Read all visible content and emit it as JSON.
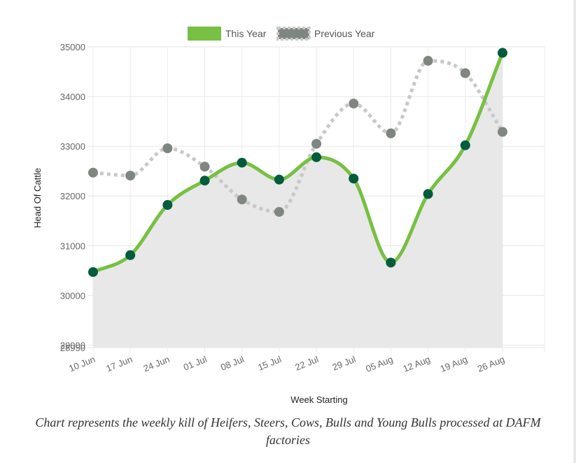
{
  "chart_data": {
    "type": "line",
    "xlabel": "Week Starting",
    "ylabel": "Head Of Cattle",
    "categories": [
      "10 Jun",
      "17 Jun",
      "24 Jun",
      "01 Jul",
      "08 Jul",
      "15 Jul",
      "22 Jul",
      "29 Jul",
      "05 Aug",
      "12 Aug",
      "19 Aug",
      "26 Aug"
    ],
    "ylim": [
      28950,
      35000
    ],
    "yticks": [
      29000,
      30000,
      31000,
      32000,
      33000,
      34000,
      35000
    ],
    "ytick_labels": [
      "29000",
      "30000",
      "31000",
      "32000",
      "33000",
      "34000",
      "35000"
    ],
    "bottom_tick_label": "28950",
    "grid": true,
    "legend_position": "top",
    "series": [
      {
        "name": "This Year",
        "style": "solid",
        "line_color": "#77c043",
        "point_color": "#005c3c",
        "fill_color": "#e8e8e8",
        "values": [
          30470,
          30810,
          31820,
          32310,
          32670,
          32330,
          32780,
          32350,
          30660,
          32040,
          33020,
          34880
        ]
      },
      {
        "name": "Previous Year",
        "style": "dotted",
        "line_color": "#c8c8c8",
        "point_color": "#7f8680",
        "values": [
          32470,
          32410,
          32960,
          32590,
          31930,
          31680,
          33050,
          33860,
          33260,
          34720,
          34470,
          33290
        ]
      }
    ]
  },
  "caption": "Chart represents the weekly kill of Heifers, Steers, Cows, Bulls and Young Bulls processed at DAFM factories"
}
